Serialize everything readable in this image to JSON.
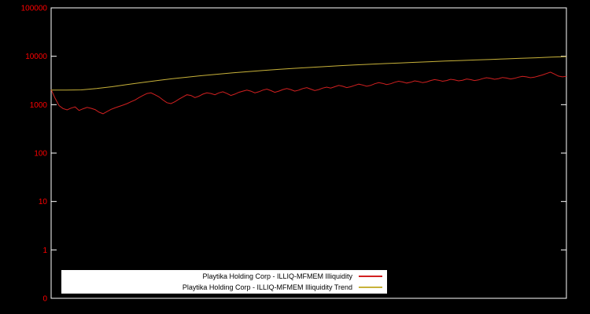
{
  "chart_data": {
    "type": "line",
    "background_color": "#000000",
    "frame_color": "#ffffff",
    "tick_color": "#ff0000",
    "yscale": "log",
    "ylim": [
      0.1,
      100000
    ],
    "grid": false,
    "legend_position": "bottom-center-inside",
    "yticks": [
      {
        "label": "100000",
        "value": 100000
      },
      {
        "label": "10000",
        "value": 10000
      },
      {
        "label": "1000",
        "value": 1000
      },
      {
        "label": "100",
        "value": 100
      },
      {
        "label": "10",
        "value": 10
      },
      {
        "label": "1",
        "value": 1
      },
      {
        "label": "0",
        "value": 0.1
      }
    ],
    "series": [
      {
        "id": "illiquidity",
        "name": "Playtika Holding Corp - ILLIQ-MFMEM Illiquidity",
        "color": "#d22020",
        "values": [
          2050,
          1350,
          950,
          830,
          780,
          850,
          900,
          760,
          820,
          880,
          840,
          790,
          700,
          650,
          720,
          800,
          860,
          920,
          980,
          1050,
          1150,
          1250,
          1400,
          1550,
          1700,
          1750,
          1600,
          1450,
          1250,
          1100,
          1050,
          1150,
          1300,
          1450,
          1600,
          1550,
          1400,
          1500,
          1650,
          1750,
          1700,
          1600,
          1750,
          1850,
          1700,
          1550,
          1650,
          1800,
          1900,
          2000,
          1900,
          1750,
          1850,
          2000,
          2100,
          1950,
          1800,
          1900,
          2050,
          2150,
          2050,
          1900,
          2000,
          2150,
          2250,
          2100,
          1950,
          2050,
          2200,
          2300,
          2200,
          2350,
          2500,
          2400,
          2250,
          2350,
          2500,
          2650,
          2550,
          2400,
          2500,
          2700,
          2850,
          2750,
          2600,
          2700,
          2900,
          3050,
          2950,
          2800,
          2900,
          3100,
          3000,
          2850,
          2950,
          3150,
          3300,
          3200,
          3050,
          3150,
          3350,
          3250,
          3100,
          3200,
          3400,
          3300,
          3150,
          3250,
          3450,
          3600,
          3500,
          3350,
          3450,
          3650,
          3550,
          3400,
          3500,
          3700,
          3850,
          3750,
          3600,
          3700,
          3900,
          4100,
          4400,
          4700,
          4300,
          3900,
          3750,
          3850
        ]
      },
      {
        "id": "illiquidity-trend",
        "name": "Playtika Holding Corp - ILLIQ-MFMEM Illiquidity Trend",
        "color": "#c8b23a",
        "values": [
          2000,
          2000,
          2020,
          2150,
          2350,
          2600,
          2870,
          3150,
          3430,
          3710,
          3990,
          4270,
          4550,
          4820,
          5090,
          5350,
          5610,
          5860,
          6110,
          6350,
          6590,
          6820,
          7050,
          7280,
          7500,
          7720,
          7940,
          8160,
          8380,
          8600,
          8830,
          9070,
          9320,
          9580,
          9850
        ]
      }
    ]
  }
}
